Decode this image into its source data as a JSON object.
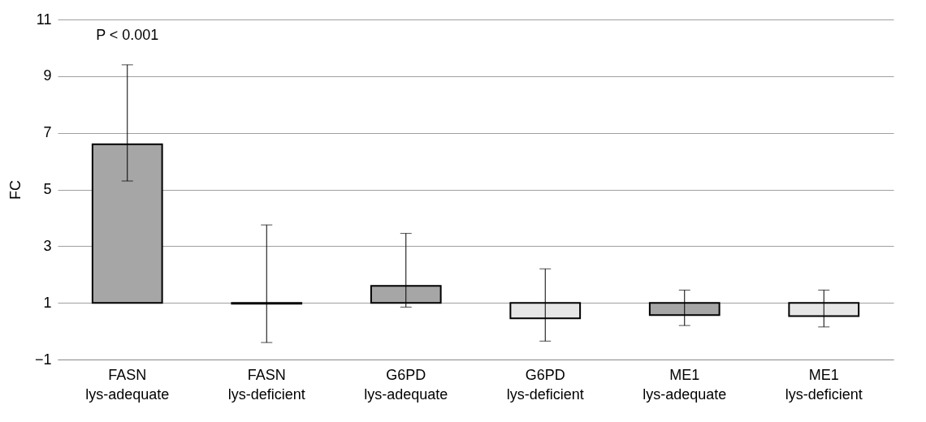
{
  "chart_data": {
    "type": "bar",
    "ylabel": "FC",
    "categories": [
      "FASN lys-adequate",
      "FASN lys-deficient",
      "G6PD lys-adequate",
      "G6PD lys-deficient",
      "ME1 lys-adequate",
      "ME1 lys-deficient"
    ],
    "base": [
      1,
      1,
      1,
      1,
      1,
      1
    ],
    "values": [
      5.6,
      -0.03,
      0.6,
      -0.55,
      -0.43,
      -0.47
    ],
    "colors": [
      "#a6a6a6",
      "#7f7f7f",
      "#a6a6a6",
      "#e6e6e6",
      "#a6a6a6",
      "#e6e6e6"
    ],
    "errors": [
      [
        5.3,
        9.4
      ],
      [
        -0.4,
        3.75
      ],
      [
        0.85,
        3.45
      ],
      [
        -0.35,
        2.2
      ],
      [
        0.2,
        1.45
      ],
      [
        0.15,
        1.45
      ]
    ],
    "ylim": [
      -1,
      11
    ],
    "yticks": [
      -1,
      1,
      3,
      5,
      7,
      9,
      11
    ],
    "grid": "y",
    "annotations": [
      "P < 0.001"
    ]
  }
}
